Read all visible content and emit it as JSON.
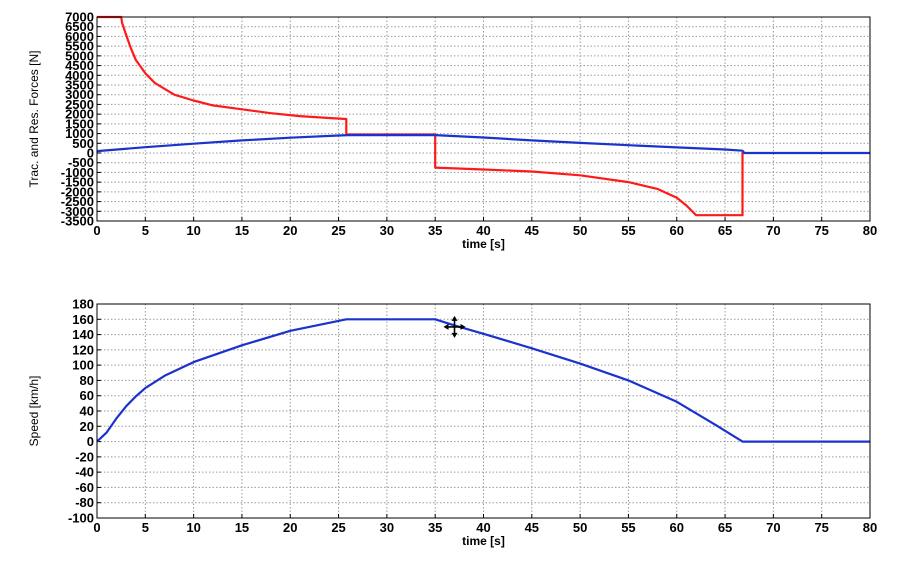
{
  "colors": {
    "traction": "#ff1a1a",
    "resistance": "#1a33cc",
    "speed": "#1a33cc",
    "grid": "#9a9a9a"
  },
  "cursor_icon": "move-cursor-icon",
  "chart_data": [
    {
      "type": "line",
      "title": "",
      "xlabel": "time [s]",
      "ylabel": "Trac. and Res. Forces [N]",
      "xlim": [
        0,
        80
      ],
      "ylim": [
        -3500,
        7000
      ],
      "xticks": [
        "0",
        "5",
        "10",
        "15",
        "20",
        "25",
        "30",
        "35",
        "40",
        "45",
        "50",
        "55",
        "60",
        "65",
        "70",
        "75",
        "80"
      ],
      "yticks": [
        "7000",
        "6500",
        "6000",
        "5500",
        "5000",
        "4500",
        "4000",
        "3500",
        "3000",
        "2500",
        "2000",
        "1500",
        "1000",
        "500",
        "0",
        "-500",
        "-1000",
        "-1500",
        "-2000",
        "-2500",
        "-3000",
        "-3500"
      ],
      "grid": true,
      "series": [
        {
          "color": "traction",
          "x": [
            0,
            2.5,
            2.6,
            3,
            3.5,
            4,
            5,
            6,
            8,
            10,
            12,
            15,
            18,
            21,
            24,
            25.8,
            25.8,
            26,
            35,
            35,
            35,
            40,
            45,
            50,
            55,
            58,
            60,
            61,
            62,
            64,
            66.8,
            66.8,
            67
          ],
          "y": [
            7000,
            7000,
            6700,
            6100,
            5400,
            4800,
            4100,
            3600,
            3000,
            2700,
            2450,
            2250,
            2050,
            1900,
            1800,
            1750,
            950,
            950,
            950,
            950,
            -750,
            -850,
            -950,
            -1150,
            -1500,
            -1850,
            -2300,
            -2700,
            -3200,
            -3200,
            -3200,
            0,
            0
          ]
        },
        {
          "color": "resistance",
          "x": [
            0,
            5,
            10,
            15,
            20,
            25,
            26,
            35,
            40,
            45,
            50,
            55,
            60,
            65,
            66.8,
            67,
            80
          ],
          "y": [
            100,
            300,
            480,
            650,
            790,
            900,
            920,
            920,
            800,
            650,
            520,
            400,
            290,
            180,
            120,
            0,
            0
          ]
        }
      ]
    },
    {
      "type": "line",
      "title": "",
      "xlabel": "time [s]",
      "ylabel": "Speed [km/h]",
      "xlim": [
        0,
        80
      ],
      "ylim": [
        -100,
        180
      ],
      "xticks": [
        "0",
        "5",
        "10",
        "15",
        "20",
        "25",
        "30",
        "35",
        "40",
        "45",
        "50",
        "55",
        "60",
        "65",
        "70",
        "75",
        "80"
      ],
      "yticks": [
        "180",
        "160",
        "140",
        "120",
        "100",
        "80",
        "60",
        "40",
        "20",
        "0",
        "-20",
        "-40",
        "-60",
        "-80",
        "-100"
      ],
      "grid": true,
      "series": [
        {
          "color": "speed",
          "x": [
            0,
            1,
            2,
            3,
            4,
            5,
            7,
            10,
            15,
            20,
            25.8,
            30,
            35,
            37,
            40,
            45,
            50,
            55,
            60,
            62,
            64,
            66.8,
            67,
            80
          ],
          "y": [
            0,
            12,
            30,
            46,
            59,
            70,
            86,
            104,
            126,
            145,
            160,
            160,
            160,
            152,
            141,
            122,
            102,
            80,
            52,
            37,
            22,
            0,
            0,
            0
          ]
        }
      ],
      "cursor_at": [
        37,
        150
      ]
    }
  ]
}
